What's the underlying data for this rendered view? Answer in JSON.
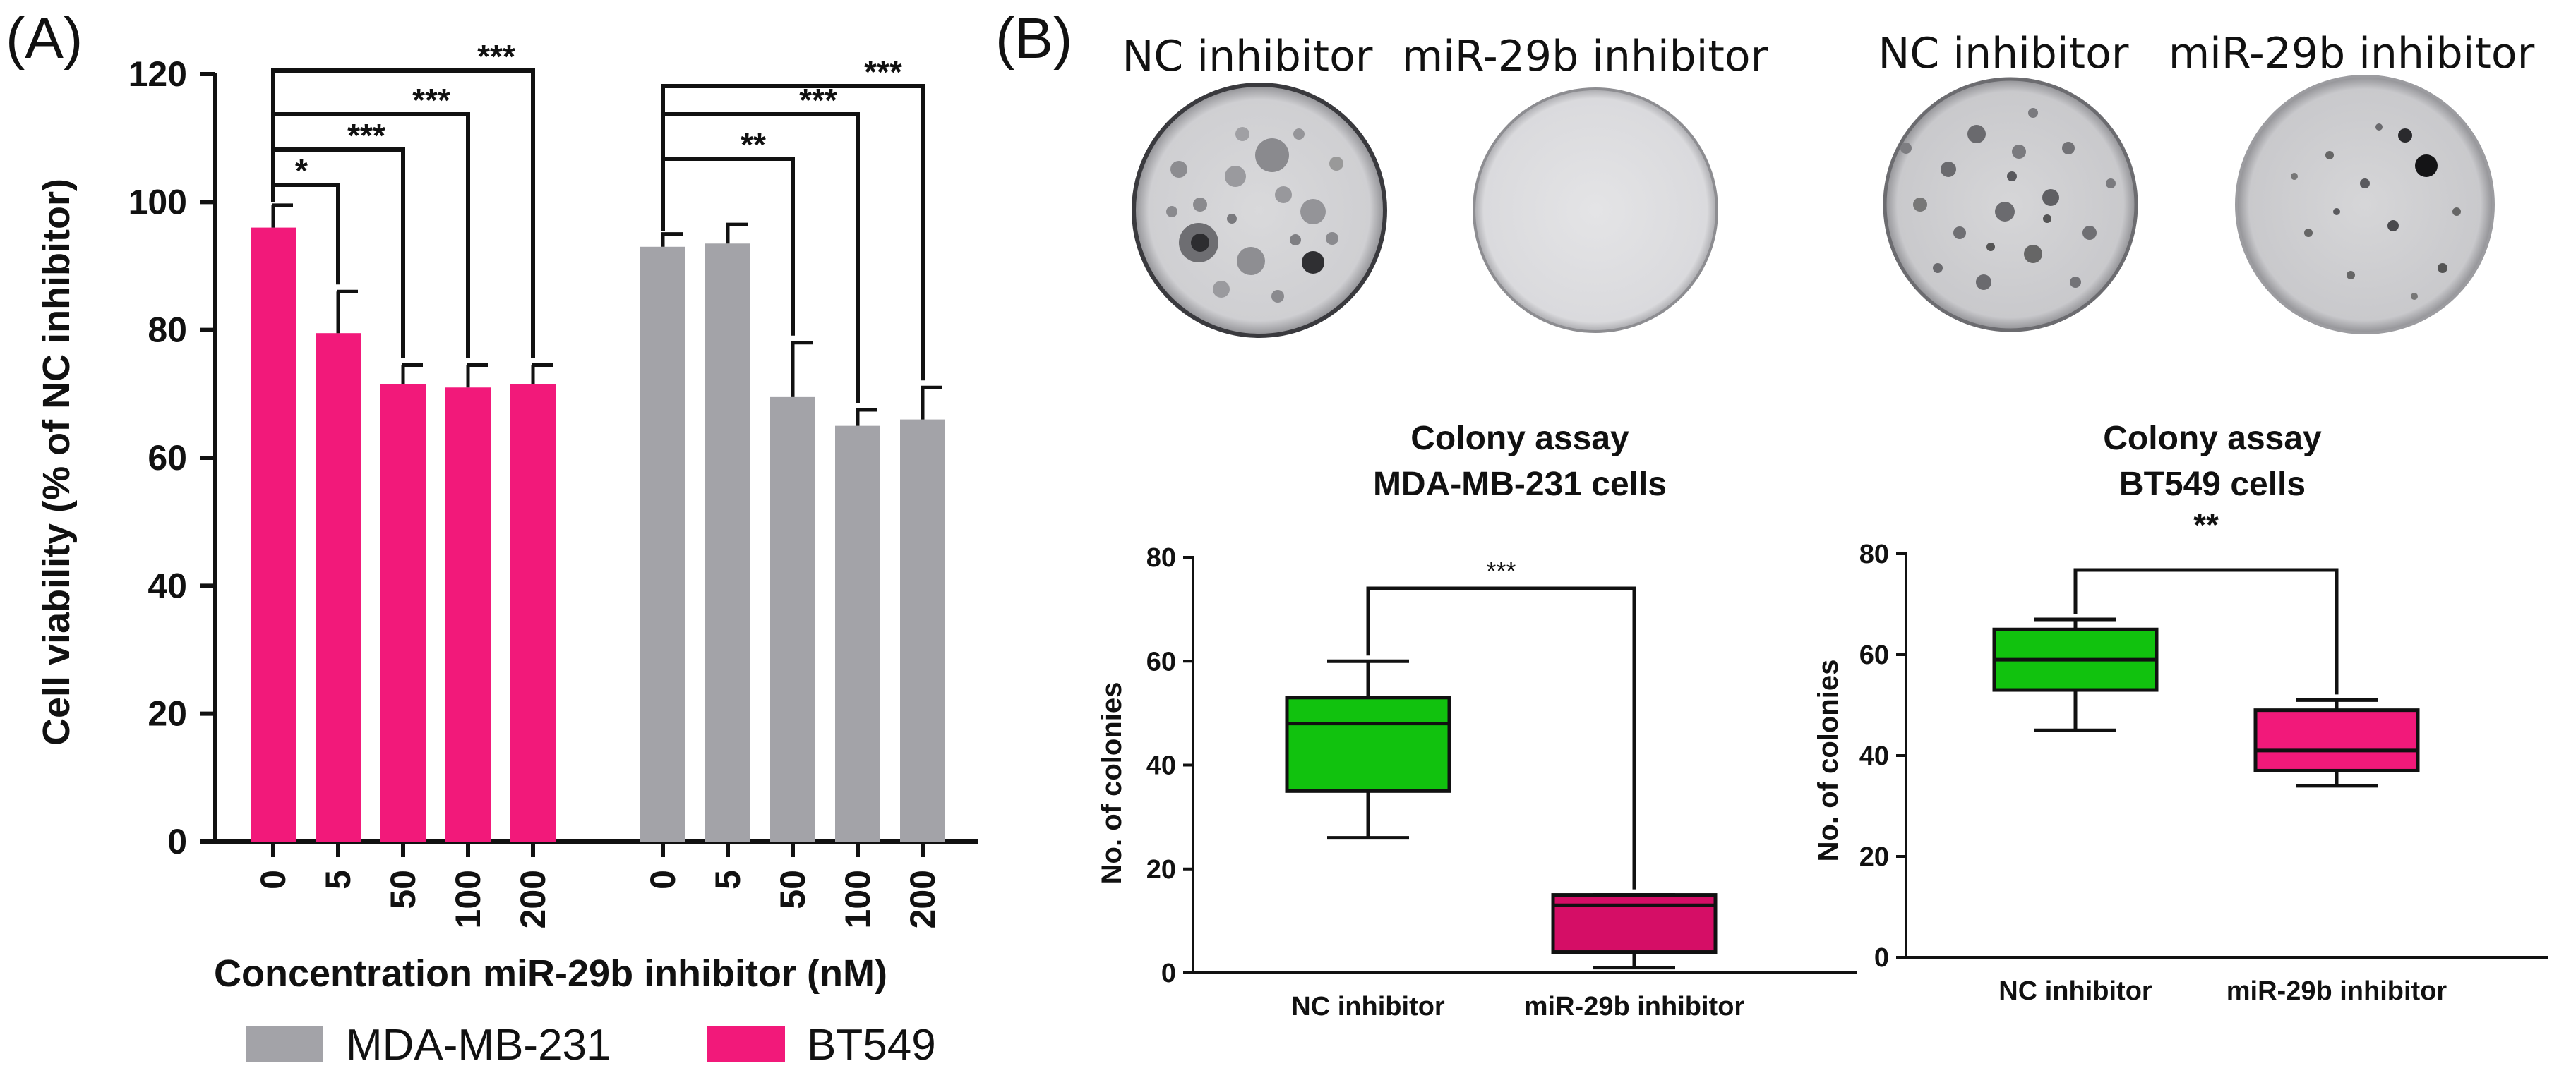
{
  "panel_a_label": "(A)",
  "panel_b_label": "(B)",
  "photo_labels": [
    "NC inhibitor",
    "miR-29b inhibitor",
    "NC inhibitor",
    "miR-29b inhibitor"
  ],
  "legend": [
    {
      "label": "MDA-MB-231",
      "color": "#a3a3a8"
    },
    {
      "label": "BT549",
      "color": "#f2197a"
    }
  ],
  "chart_data": [
    {
      "type": "bar",
      "xlabel": "Concentration miR-29b inhibitor (nM)",
      "ylabel": "Cell viability  (% of NC inhibitor)",
      "ylim": [
        0,
        120
      ],
      "yticks": [
        0,
        20,
        40,
        60,
        80,
        100,
        120
      ],
      "categories": [
        "0",
        "5",
        "50",
        "100",
        "200"
      ],
      "series": [
        {
          "name": "BT549",
          "color": "#f2197a",
          "values": [
            96,
            79.5,
            71.5,
            71,
            71.5
          ],
          "errors": [
            3.5,
            6.5,
            3,
            3.5,
            3
          ]
        },
        {
          "name": "MDA-MB-231",
          "color": "#a3a3a8",
          "values": [
            93,
            93.5,
            69.5,
            65,
            66
          ],
          "errors": [
            2,
            3,
            8.5,
            2.5,
            5
          ]
        }
      ],
      "significance": {
        "BT549": [
          {
            "from": "0",
            "to": "5",
            "label": "*"
          },
          {
            "from": "0",
            "to": "50",
            "label": "***"
          },
          {
            "from": "0",
            "to": "100",
            "label": "***"
          },
          {
            "from": "0",
            "to": "200",
            "label": "***"
          }
        ],
        "MDA-MB-231": [
          {
            "from": "0",
            "to": "50",
            "label": "**"
          },
          {
            "from": "0",
            "to": "100",
            "label": "***"
          },
          {
            "from": "0",
            "to": "200",
            "label": "***"
          }
        ]
      }
    },
    {
      "type": "box",
      "title": [
        "Colony assay",
        "MDA-MB-231 cells"
      ],
      "ylabel": "No. of colonies",
      "ylim": [
        0,
        80
      ],
      "yticks": [
        0,
        20,
        40,
        60,
        80
      ],
      "categories": [
        "NC inhibitor",
        "miR-29b inhibitor"
      ],
      "boxes": [
        {
          "min": 26,
          "q1": 35,
          "median": 48,
          "q3": 53,
          "max": 60,
          "color": "#11c20e"
        },
        {
          "min": 1,
          "q1": 4,
          "median": 13,
          "q3": 15,
          "max": 15,
          "color": "#d50e66"
        }
      ],
      "significance": "***"
    },
    {
      "type": "box",
      "title": [
        "Colony assay",
        "BT549 cells"
      ],
      "ylabel": "No. of colonies",
      "ylim": [
        0,
        80
      ],
      "yticks": [
        0,
        20,
        40,
        60,
        80
      ],
      "categories": [
        "NC inhibitor",
        "miR-29b inhibitor"
      ],
      "boxes": [
        {
          "min": 45,
          "q1": 53,
          "median": 59,
          "q3": 65,
          "max": 67,
          "color": "#11c20e"
        },
        {
          "min": 34,
          "q1": 37,
          "median": 41,
          "q3": 49,
          "max": 51,
          "color": "#f2197a"
        }
      ],
      "significance": "**"
    }
  ]
}
